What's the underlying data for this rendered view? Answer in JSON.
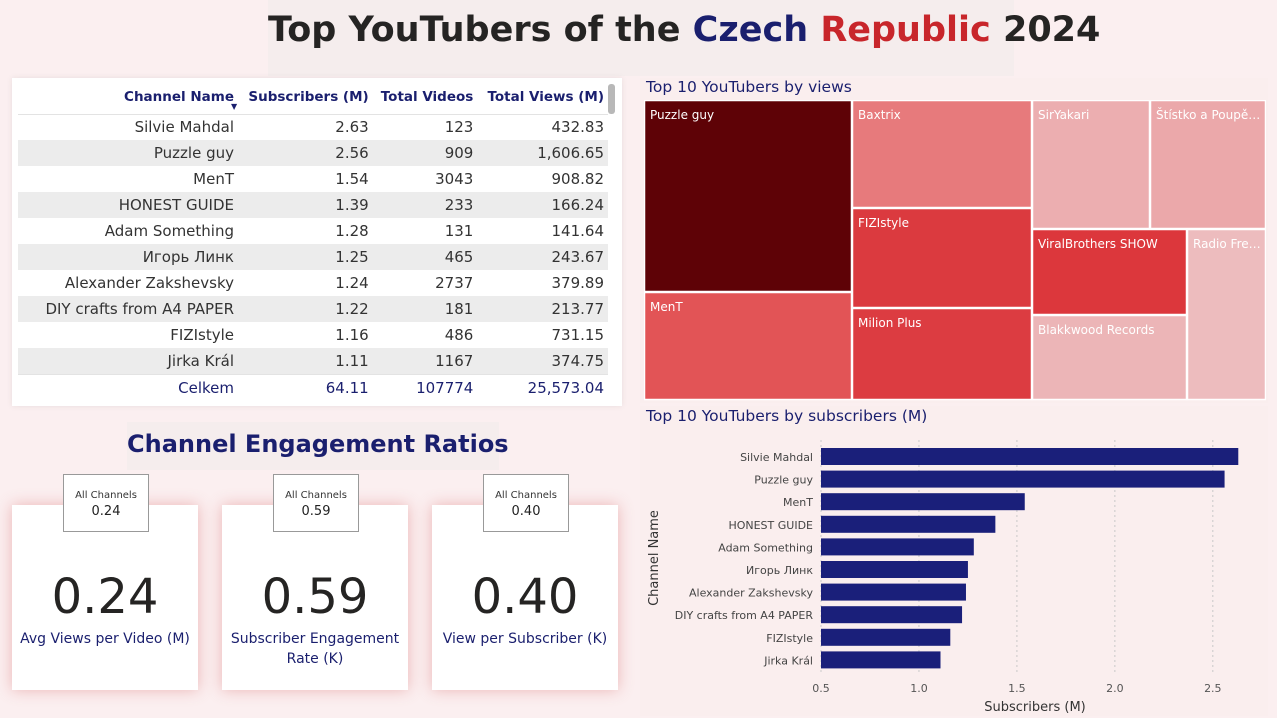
{
  "header": {
    "title_part1": "Top YouTubers of the",
    "title_czech": "Czech",
    "title_republic": "Republic",
    "title_year": "2024"
  },
  "table": {
    "columns": [
      "Channel Name",
      "Subscribers (M)",
      "Total Videos",
      "Total Views (M)"
    ],
    "rows": [
      [
        "Silvie Mahdal",
        "2.63",
        "123",
        "432.83"
      ],
      [
        "Puzzle guy",
        "2.56",
        "909",
        "1,606.65"
      ],
      [
        "MenT",
        "1.54",
        "3043",
        "908.82"
      ],
      [
        "HONEST GUIDE",
        "1.39",
        "233",
        "166.24"
      ],
      [
        "Adam Something",
        "1.28",
        "131",
        "141.64"
      ],
      [
        "Игорь Линк",
        "1.25",
        "465",
        "243.67"
      ],
      [
        "Alexander Zakshevsky",
        "1.24",
        "2737",
        "379.89"
      ],
      [
        "DIY crafts from A4 PAPER",
        "1.22",
        "181",
        "213.77"
      ],
      [
        "FIZIstyle",
        "1.16",
        "486",
        "731.15"
      ],
      [
        "Jirka Král",
        "1.11",
        "1167",
        "374.75"
      ]
    ],
    "total": [
      "Celkem",
      "64.11",
      "107774",
      "25,573.04"
    ]
  },
  "engagement": {
    "title": "Channel Engagement Ratios",
    "cards": [
      {
        "value": "0.24",
        "label": "Avg Views per Video (M)",
        "mini_label": "All Channels",
        "mini_value": "0.24"
      },
      {
        "value": "0.59",
        "label": "Subscriber Engagement Rate (K)",
        "mini_label": "All Channels",
        "mini_value": "0.59"
      },
      {
        "value": "0.40",
        "label": "View per Subscriber (K)",
        "mini_label": "All Channels",
        "mini_value": "0.40"
      }
    ]
  },
  "chart_data": [
    {
      "type": "treemap",
      "title": "Top 10 YouTubers by views",
      "items": [
        {
          "name": "Puzzle guy",
          "color": "#5e0206"
        },
        {
          "name": "MenT",
          "color": "#e25456"
        },
        {
          "name": "Baxtrix",
          "color": "#e77a7c"
        },
        {
          "name": "FIZIstyle",
          "color": "#db3a3f"
        },
        {
          "name": "Milion Plus",
          "color": "#dc3c41"
        },
        {
          "name": "SirYakari",
          "color": "#ecaeb0"
        },
        {
          "name": "Štístko a Poupě…",
          "color": "#eba8aa"
        },
        {
          "name": "ViralBrothers SHOW",
          "color": "#dc373c"
        },
        {
          "name": "Blakkwood Records",
          "color": "#ecb5b7"
        },
        {
          "name": "Radio Fre…",
          "color": "#edbcbe"
        }
      ]
    },
    {
      "type": "bar",
      "orientation": "horizontal",
      "title": "Top 10 YouTubers by subscribers (M)",
      "xlabel": "Subscribers (M)",
      "ylabel": "Channel Name",
      "xlim": [
        0.5,
        2.7
      ],
      "xticks": [
        "0.5",
        "1.0",
        "1.5",
        "2.0",
        "2.5"
      ],
      "bar_color": "#1a1f7a",
      "categories": [
        "Silvie Mahdal",
        "Puzzle guy",
        "MenT",
        "HONEST GUIDE",
        "Adam Something",
        "Игорь Линк",
        "Alexander Zakshevsky",
        "DIY crafts from A4 PAPER",
        "FIZIstyle",
        "Jirka Král"
      ],
      "values": [
        2.63,
        2.56,
        1.54,
        1.39,
        1.28,
        1.25,
        1.24,
        1.22,
        1.16,
        1.11
      ]
    }
  ]
}
